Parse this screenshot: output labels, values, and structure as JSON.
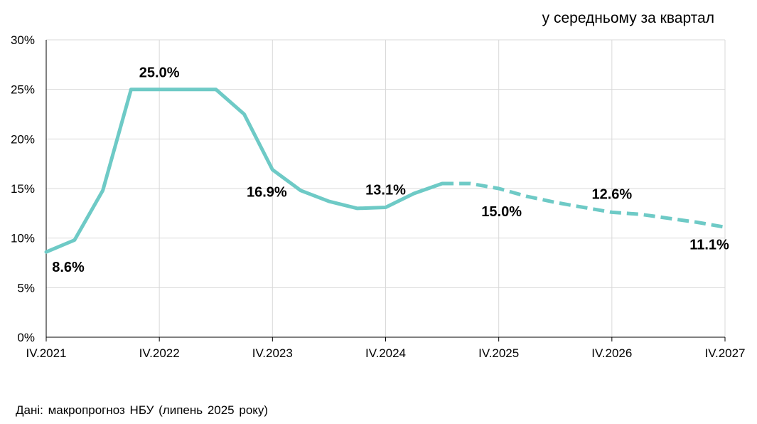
{
  "chart_data": {
    "type": "line",
    "unit_note": "у середньому за квартал",
    "source": "Дані: макропрогноз НБУ (липень 2025 року)",
    "y_ticks": [
      "0%",
      "5%",
      "10%",
      "15%",
      "20%",
      "25%",
      "30%"
    ],
    "ylim": [
      0,
      30
    ],
    "x_tick_labels": [
      "IV.2021",
      "IV.2022",
      "IV.2023",
      "IV.2024",
      "IV.2025",
      "IV.2026",
      "IV.2027"
    ],
    "grid": true,
    "line_color": "#6ECAC6",
    "x": [
      "IV.2021",
      "I.2022",
      "II.2022",
      "III.2022",
      "IV.2022",
      "I.2023",
      "II.2023",
      "III.2023",
      "IV.2023",
      "I.2024",
      "II.2024",
      "III.2024",
      "IV.2024",
      "I.2025",
      "II.2025",
      "III.2025",
      "IV.2025",
      "I.2026",
      "II.2026",
      "III.2026",
      "IV.2026",
      "I.2027",
      "II.2027",
      "III.2027",
      "IV.2027"
    ],
    "actual": [
      8.6,
      9.8,
      14.8,
      25.0,
      25.0,
      25.0,
      25.0,
      22.5,
      16.9,
      14.8,
      13.7,
      13.0,
      13.1,
      14.5,
      15.5
    ],
    "forecast": [
      15.5,
      15.5,
      15.0,
      14.2,
      13.6,
      13.1,
      12.6,
      12.4,
      12.0,
      11.6,
      11.1
    ],
    "data_labels": [
      {
        "x": "IV.2021",
        "value": 8.6,
        "text": "8.6%"
      },
      {
        "x": "IV.2022",
        "value": 25.0,
        "text": "25.0%"
      },
      {
        "x": "IV.2023",
        "value": 16.9,
        "text": "16.9%"
      },
      {
        "x": "IV.2024",
        "value": 13.1,
        "text": "13.1%"
      },
      {
        "x": "IV.2025",
        "value": 15.0,
        "text": "15.0%"
      },
      {
        "x": "IV.2026",
        "value": 12.6,
        "text": "12.6%"
      },
      {
        "x": "IV.2027",
        "value": 11.1,
        "text": "11.1%"
      }
    ]
  }
}
